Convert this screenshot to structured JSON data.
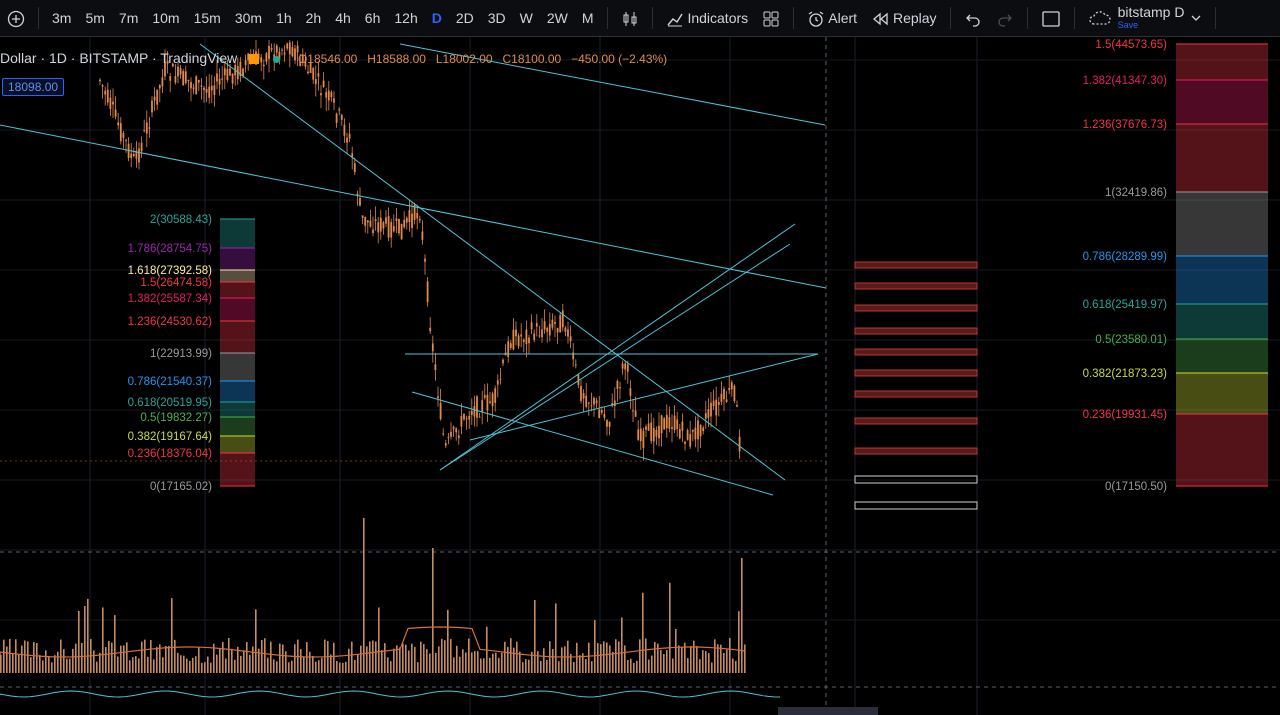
{
  "toolbar": {
    "intervals": [
      "3m",
      "5m",
      "7m",
      "10m",
      "15m",
      "30m",
      "1h",
      "2h",
      "4h",
      "6h",
      "12h",
      "D",
      "2D",
      "3D",
      "W",
      "2W",
      "M"
    ],
    "active_interval": "D",
    "indicators_label": "Indicators",
    "alert_label": "Alert",
    "replay_label": "Replay",
    "layout_name": "bitstamp D",
    "save_label": "Save"
  },
  "legend": {
    "symbol": "Dollar · 1D · BITSTAMP · TradingView",
    "open": "O18546.00",
    "high": "H18588.00",
    "low": "L18002.00",
    "close": "C18100.00",
    "change": "−450.00 (−2.43%)"
  },
  "price_tag": "18098.00",
  "fib_left": [
    {
      "level": "2",
      "price": "30588.43",
      "color": "#26a69a"
    },
    {
      "level": "1.786",
      "price": "28754.75",
      "color": "#9c27b0"
    },
    {
      "level": "1.618",
      "price": "27392.58",
      "color": "#ffeb9c"
    },
    {
      "level": "1.5",
      "price": "26474.58",
      "color": "#f23645"
    },
    {
      "level": "1.382",
      "price": "25587.34",
      "color": "#e91e63"
    },
    {
      "level": "1.236",
      "price": "24530.62",
      "color": "#f23645"
    },
    {
      "level": "1",
      "price": "22913.99",
      "color": "#9a9a9a"
    },
    {
      "level": "0.786",
      "price": "21540.37",
      "color": "#2196f3"
    },
    {
      "level": "0.618",
      "price": "20519.95",
      "color": "#26a69a"
    },
    {
      "level": "0.5",
      "price": "19832.27",
      "color": "#4caf50"
    },
    {
      "level": "0.382",
      "price": "19167.64",
      "color": "#cddc39"
    },
    {
      "level": "0.236",
      "price": "18376.04",
      "color": "#f23645"
    },
    {
      "level": "0",
      "price": "17165.02",
      "color": "#9a9a9a"
    }
  ],
  "fib_right": [
    {
      "level": "1.5",
      "price": "44573.65",
      "color": "#f23645"
    },
    {
      "level": "1.382",
      "price": "41347.30",
      "color": "#e91e63"
    },
    {
      "level": "1.236",
      "price": "37676.73",
      "color": "#f23645"
    },
    {
      "level": "1",
      "price": "32419.86",
      "color": "#9a9a9a"
    },
    {
      "level": "0.786",
      "price": "28289.99",
      "color": "#2196f3"
    },
    {
      "level": "0.618",
      "price": "25419.97",
      "color": "#26a69a"
    },
    {
      "level": "0.5",
      "price": "23580.01",
      "color": "#4caf50"
    },
    {
      "level": "0.382",
      "price": "21873.23",
      "color": "#cddc39"
    },
    {
      "level": "0.236",
      "price": "19931.45",
      "color": "#f23645"
    },
    {
      "level": "0",
      "price": "17150.50",
      "color": "#9a9a9a"
    }
  ],
  "colors": {
    "candle": "#e08a4b",
    "trendline": "#4fc3d9",
    "grid": "#1f2430",
    "accent": "#2962ff"
  }
}
